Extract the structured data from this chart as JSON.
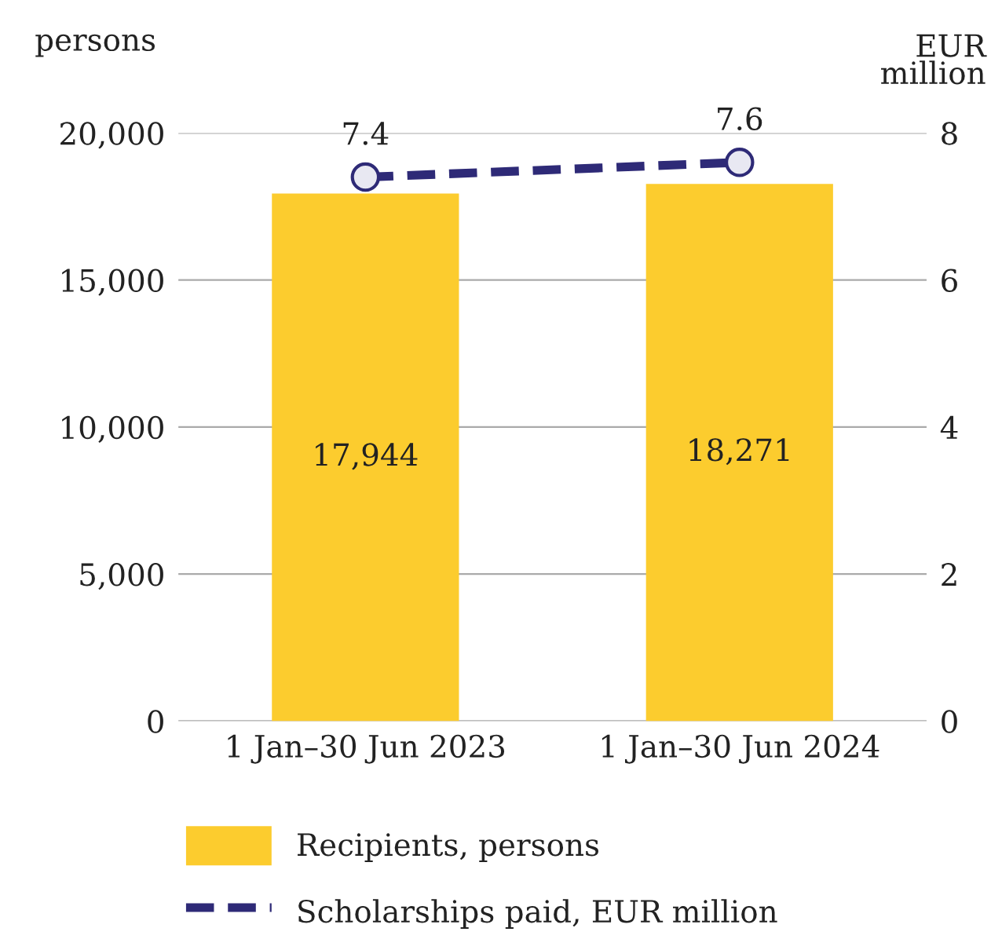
{
  "chart_data": {
    "type": "bar",
    "categories": [
      "1 Jan–30 Jun 2023",
      "1 Jan–30 Jun 2024"
    ],
    "series": [
      {
        "name": "Recipients, persons",
        "color": "#fccc2e",
        "values": [
          17944,
          18271
        ],
        "value_labels": [
          "17,944",
          "18,271"
        ]
      },
      {
        "name": "Scholarships paid, EUR million",
        "type": "line",
        "axis": "y2",
        "color": "#2e2a77",
        "values": [
          7.4,
          7.6
        ],
        "marker": "circle",
        "line_style": "dashed"
      }
    ],
    "ylabel": "persons",
    "y2label": "EUR\nmillion",
    "ylim": [
      0,
      20000
    ],
    "yticks": [
      {
        "value": 0,
        "label": "0"
      },
      {
        "value": 5000,
        "label": "5,000"
      },
      {
        "value": 10000,
        "label": "10,000"
      },
      {
        "value": 15000,
        "label": "15,000"
      },
      {
        "value": 20000,
        "label": "20,000"
      }
    ],
    "y2lim": [
      0,
      8
    ],
    "y2ticks": [
      0,
      2,
      4,
      6,
      8
    ],
    "data_labels": true,
    "grid": "y",
    "legend": "bottom"
  }
}
